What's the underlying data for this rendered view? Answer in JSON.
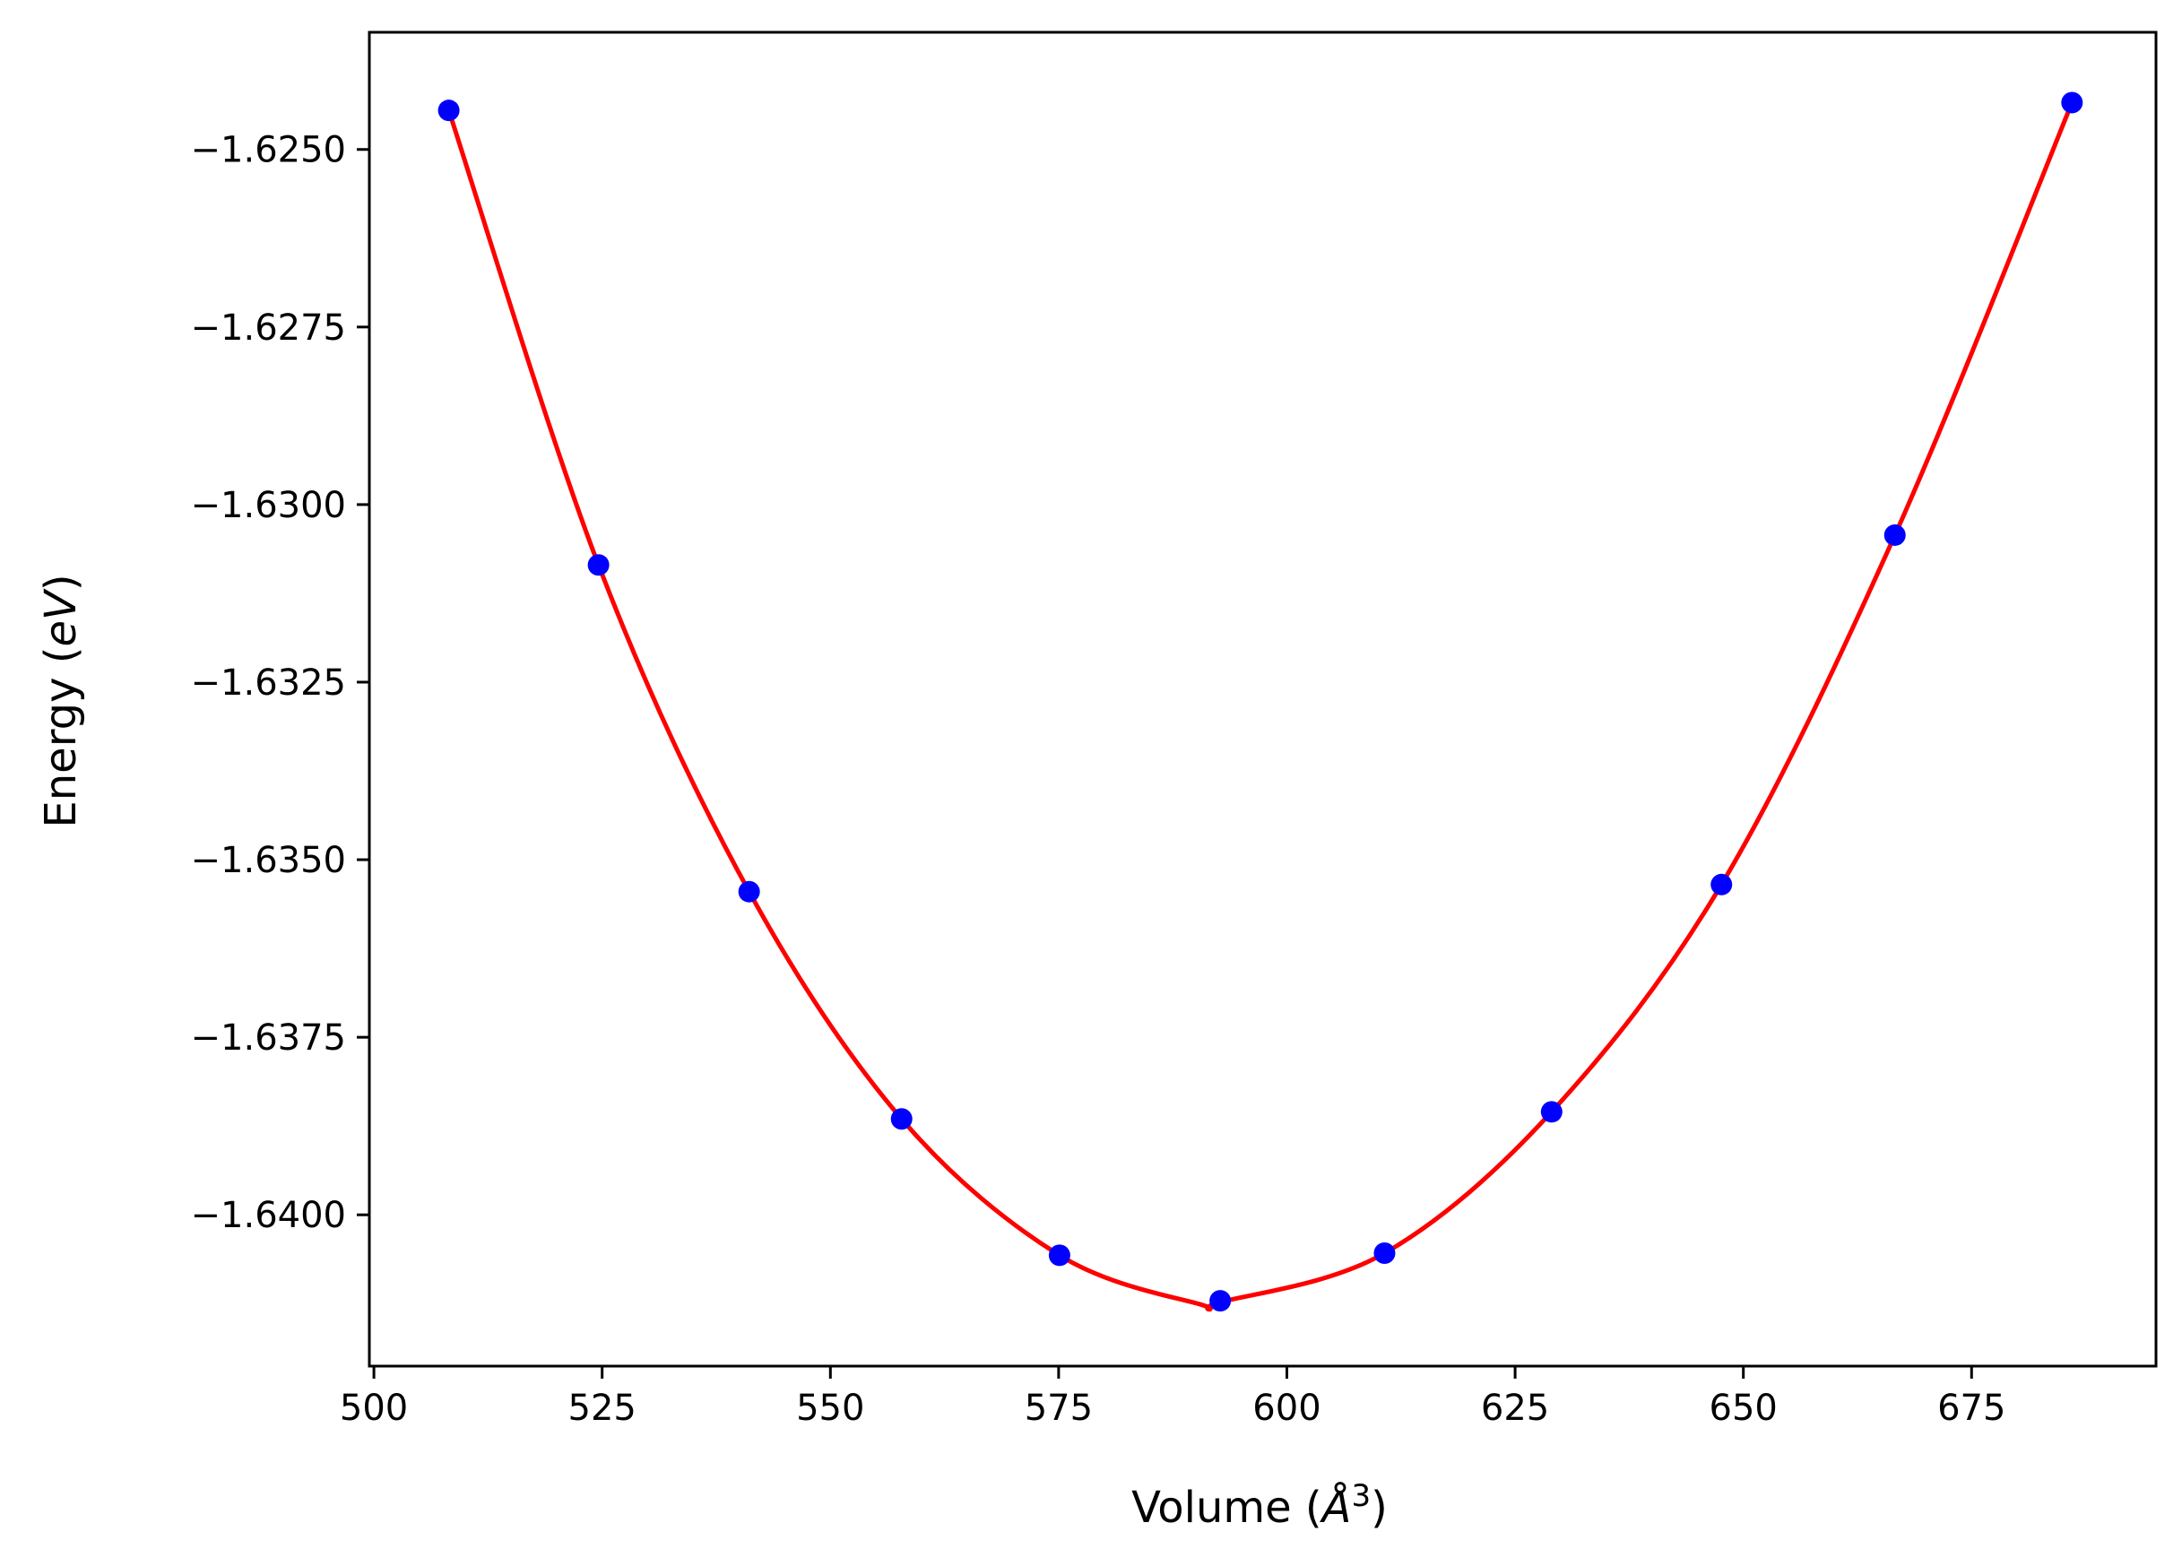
{
  "chart_data": {
    "type": "scatter",
    "title": "",
    "xlabel": "Volume (",
    "xlabel_symbol": "Å",
    "xlabel_superscript": "3",
    "xlabel_close": ")",
    "ylabel": "Energy (",
    "ylabel_symbol": "eV",
    "ylabel_close": ")",
    "xlim": [
      499.5,
      695.2
    ],
    "ylim": [
      -1.64213,
      -1.62335
    ],
    "x_ticks": [
      500,
      525,
      550,
      575,
      600,
      625,
      650,
      675
    ],
    "x_tick_labels": [
      "500",
      "525",
      "550",
      "575",
      "600",
      "625",
      "650",
      "675"
    ],
    "y_ticks": [
      -1.625,
      -1.6275,
      -1.63,
      -1.6325,
      -1.635,
      -1.6375,
      -1.64
    ],
    "y_tick_labels": [
      "−1.6250",
      "−1.6275",
      "−1.6300",
      "−1.6325",
      "−1.6350",
      "−1.6375",
      "−1.6400"
    ],
    "grid": false,
    "series": [
      {
        "kind": "points",
        "color": "#0000ff",
        "x": [
          508.2,
          524.6,
          541.1,
          557.8,
          575.1,
          592.7,
          610.7,
          629.0,
          647.6,
          666.6,
          686.0
        ],
        "y": [
          -1.62445,
          -1.63085,
          -1.63545,
          -1.63865,
          -1.64057,
          -1.64121,
          -1.64054,
          -1.63855,
          -1.63535,
          -1.63043,
          -1.62434
        ]
      },
      {
        "kind": "fit",
        "color": "#ff0000",
        "x": [
          508.2,
          524.6,
          541.1,
          557.8,
          575.1,
          590.5,
          592.7,
          610.7,
          629.0,
          647.6,
          666.6,
          686.0
        ],
        "y": [
          -1.62445,
          -1.63085,
          -1.63545,
          -1.63865,
          -1.64057,
          -1.64126,
          -1.64123,
          -1.64054,
          -1.63855,
          -1.63535,
          -1.63043,
          -1.62434
        ]
      }
    ]
  }
}
